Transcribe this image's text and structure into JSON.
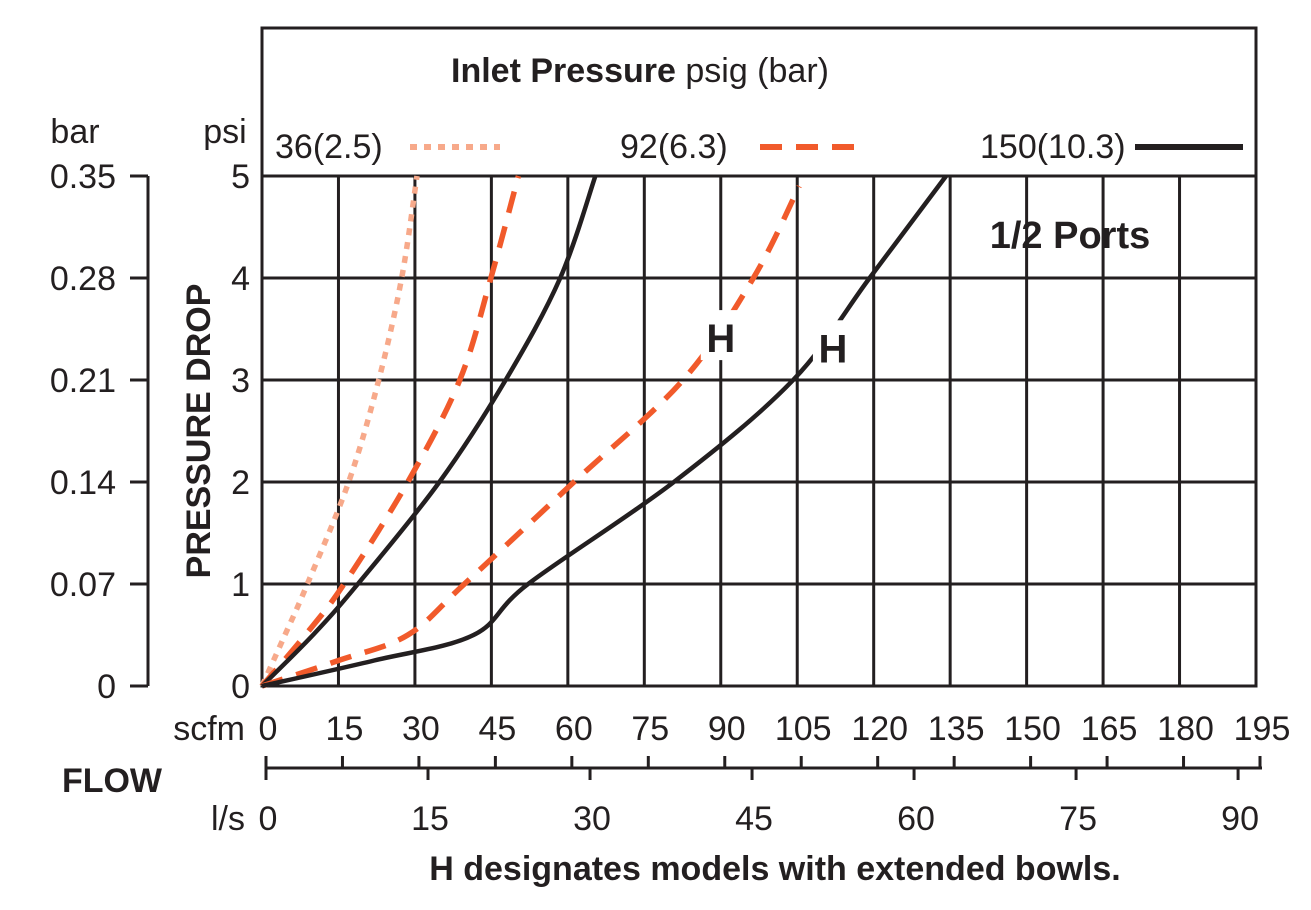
{
  "chart_data": {
    "type": "line",
    "title": "Inlet Pressure",
    "title_units": "psig (bar)",
    "annotation": "1/2 Ports",
    "footnote": "H designates models with extended bowls.",
    "ylabel": "PRESSURE DROP",
    "y_units_primary": "psi",
    "y_units_secondary": "bar",
    "xlabel": "FLOW",
    "x_units_primary": "scfm",
    "x_units_secondary": "l/s",
    "xlim": [
      0,
      195
    ],
    "ylim": [
      0,
      5
    ],
    "x_ticks": [
      "0",
      "15",
      "30",
      "45",
      "60",
      "75",
      "90",
      "105",
      "120",
      "135",
      "150",
      "165",
      "180",
      "195"
    ],
    "y_ticks": [
      "0",
      "1",
      "2",
      "3",
      "4",
      "5"
    ],
    "y_ticks_bar": [
      "0",
      "0.07",
      "0.14",
      "0.21",
      "0.28",
      "0.35"
    ],
    "x_ticks_ls": [
      "0",
      "15",
      "30",
      "45",
      "60",
      "75",
      "90"
    ],
    "grid": true,
    "legend_position": "top",
    "legend": [
      {
        "label": "36(2.5)",
        "color": "#f7a98a",
        "style": "dotted"
      },
      {
        "label": "92(6.3)",
        "color": "#f15a2b",
        "style": "dashed"
      },
      {
        "label": "150(10.3)",
        "color": "#231f20",
        "style": "solid"
      }
    ],
    "series": [
      {
        "name": "36(2.5)",
        "color": "#f7a98a",
        "style": "dotted",
        "x": [
          0,
          4.5,
          8.9,
          17,
          22.9,
          27.4,
          30.4
        ],
        "y": [
          0,
          0.5,
          1,
          2,
          3,
          4,
          5
        ]
      },
      {
        "name": "92(6.3)",
        "color": "#f15a2b",
        "style": "dashed",
        "x": [
          0,
          8.5,
          16.1,
          28.6,
          38.8,
          44.9,
          50.3
        ],
        "y": [
          0,
          0.5,
          1,
          2,
          3,
          4,
          5
        ]
      },
      {
        "name": "150(10.3)",
        "color": "#231f20",
        "style": "solid",
        "x": [
          0,
          10,
          18.8,
          34.8,
          47.8,
          58.5,
          65.4
        ],
        "y": [
          0,
          0.5,
          1,
          2,
          3,
          4,
          5
        ]
      },
      {
        "name": "92(6.3)",
        "label": "H",
        "color": "#f15a2b",
        "style": "dashed",
        "x": [
          0,
          15,
          28.6,
          39.7,
          61.2,
          82.6,
          96.4,
          105.4
        ],
        "y": [
          0,
          0.25,
          0.5,
          1,
          2,
          3,
          4,
          4.9
        ]
      },
      {
        "name": "150(10.3)",
        "label": "H",
        "color": "#231f20",
        "style": "solid",
        "x": [
          0,
          22,
          41.5,
          52.2,
          80.8,
          104.2,
          119.2,
          134.2
        ],
        "y": [
          0,
          0.25,
          0.5,
          1,
          2,
          3,
          4,
          5
        ]
      }
    ]
  }
}
